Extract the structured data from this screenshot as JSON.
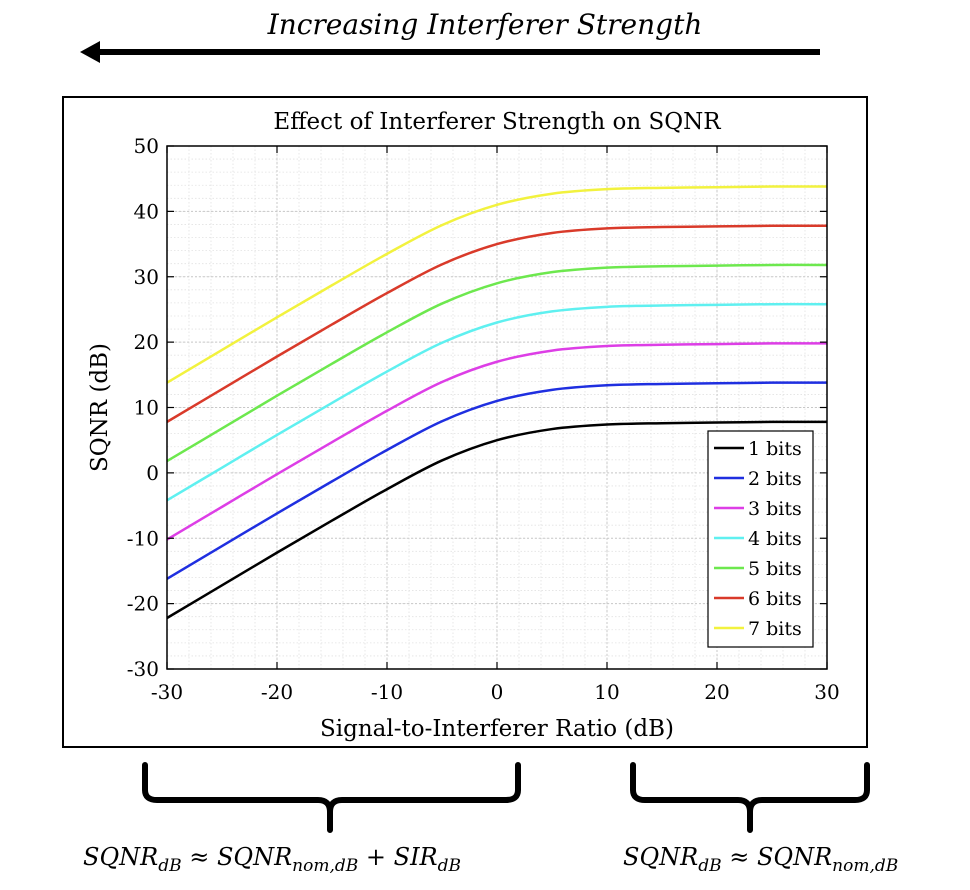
{
  "top_caption": "Increasing Interferer Strength",
  "bottom_equations": {
    "left": {
      "lhs": "SQNR",
      "lhs_sub": "dB",
      "op": "≈",
      "t1": "SQNR",
      "t1_sub": "nom,dB",
      "plus": "+",
      "t2": "SIR",
      "t2_sub": "dB"
    },
    "right": {
      "lhs": "SQNR",
      "lhs_sub": "dB",
      "op": "≈",
      "t1": "SQNR",
      "t1_sub": "nom,dB"
    }
  },
  "chart_data": {
    "type": "line",
    "title": "Effect of Interferer Strength on SQNR",
    "xlabel": "Signal-to-Interferer Ratio (dB)",
    "ylabel": "SQNR (dB)",
    "xlim": [
      -30,
      30
    ],
    "ylim": [
      -30,
      50
    ],
    "xticks": [
      "-30",
      "-20",
      "-10",
      "0",
      "10",
      "20",
      "30"
    ],
    "yticks": [
      "50",
      "40",
      "30",
      "20",
      "10",
      "0",
      "-10",
      "-20",
      "-30"
    ],
    "grid": true,
    "minor_grid": true,
    "legend_position": "lower-right",
    "x": [
      -30,
      -25,
      -20,
      -15,
      -10,
      -5,
      0,
      5,
      10,
      15,
      20,
      25,
      30
    ],
    "series": [
      {
        "name": "1 bits",
        "color": "#000000",
        "values": [
          -22.2,
          -17.2,
          -12.2,
          -7.3,
          -2.5,
          1.9,
          5.0,
          6.7,
          7.4,
          7.6,
          7.7,
          7.8,
          7.8
        ]
      },
      {
        "name": "2 bits",
        "color": "#1f2fe0",
        "values": [
          -16.2,
          -11.2,
          -6.2,
          -1.3,
          3.5,
          7.9,
          11.0,
          12.7,
          13.4,
          13.6,
          13.7,
          13.8,
          13.8
        ]
      },
      {
        "name": "3 bits",
        "color": "#dd3ee6",
        "values": [
          -10.2,
          -5.2,
          -0.2,
          4.7,
          9.5,
          13.9,
          17.0,
          18.7,
          19.4,
          19.6,
          19.7,
          19.8,
          19.8
        ]
      },
      {
        "name": "4 bits",
        "color": "#5ff0f0",
        "values": [
          -4.2,
          0.8,
          5.8,
          10.7,
          15.5,
          19.9,
          23.0,
          24.7,
          25.4,
          25.6,
          25.7,
          25.8,
          25.8
        ]
      },
      {
        "name": "5 bits",
        "color": "#6de84e",
        "values": [
          1.8,
          6.8,
          11.8,
          16.7,
          21.5,
          25.9,
          29.0,
          30.7,
          31.4,
          31.6,
          31.7,
          31.8,
          31.8
        ]
      },
      {
        "name": "6 bits",
        "color": "#d93a2a",
        "values": [
          7.8,
          12.8,
          17.8,
          22.7,
          27.5,
          31.9,
          35.0,
          36.7,
          37.4,
          37.6,
          37.7,
          37.8,
          37.8
        ]
      },
      {
        "name": "7 bits",
        "color": "#f2f23e",
        "values": [
          13.8,
          18.8,
          23.8,
          28.7,
          33.5,
          37.9,
          41.0,
          42.7,
          43.4,
          43.6,
          43.7,
          43.8,
          43.8
        ]
      }
    ]
  }
}
